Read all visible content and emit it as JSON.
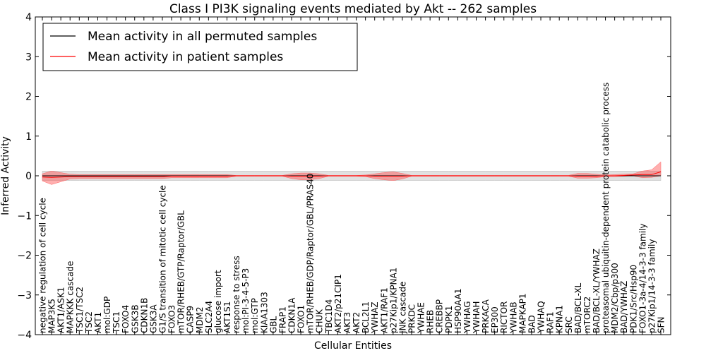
{
  "chart_data": {
    "type": "line",
    "title": "Class I PI3K signaling events mediated by Akt -- 262 samples",
    "xlabel": "Cellular Entities",
    "ylabel": "Inferred Activity",
    "ylim": [
      -4,
      4
    ],
    "yticks": [
      -4,
      -3,
      -2,
      -1,
      0,
      1,
      2,
      3,
      4
    ],
    "ytick_labels": [
      "−4",
      "−3",
      "−2",
      "−1",
      "0",
      "1",
      "2",
      "3",
      "4"
    ],
    "legend_position": "top-left",
    "categories": [
      "negative regulation of cell cycle",
      "MAP3K5",
      "AKT1/ASK1",
      "MAPKKK cascade",
      "TSC1/TSC2",
      "TSC2",
      "AKT1",
      "mol:GDP",
      "TSC1",
      "FOXO4",
      "GSK3B",
      "CDKN1B",
      "GSK3A",
      "G1/S transition of mitotic cell cycle",
      "FOXO3",
      "mTOR/RHEB/GTP/Raptor/GBL",
      "CASP9",
      "MDM2",
      "SLC2A4",
      "glucose import",
      "AKT1S1",
      "response to stress",
      "mol:PI-3-4-5-P3",
      "mol:GTP",
      "KIAA1303",
      "GBL",
      "FRAP1",
      "CDKN1A",
      "FOXO1",
      "mTOR/RHEB/GDP/Raptor/GBL/PRAS40",
      "CHUK",
      "TBC1D4",
      "AKT2/p21CIP1",
      "AKT3",
      "AKT2",
      "BCL2L1",
      "YWHAZ",
      "AKT1/RAF1",
      "p27Kip1/KPNA1",
      "JNK cascade",
      "PRKDC",
      "YWHAE",
      "RHEB",
      "CREBBP",
      "PDPK1",
      "HSP90AA1",
      "YWHAG",
      "YWHAH",
      "PRKACA",
      "EP300",
      "RICTOR",
      "YWHAB",
      "MAPKAP1",
      "BAD",
      "YWHAQ",
      "RAF1",
      "KPNA1",
      "SRC",
      "BAD/BCL-XL",
      "mTORC2",
      "BAD/BCL-XL/YWHAZ",
      "proteasomal ubiquitin-dependent protein catabolic process",
      "MDM2/Cbp/p300",
      "BAD/YWHAZ",
      "PDK1/Src/Hsp90",
      "FOXO1-3a-4/14-3-3 family",
      "p27Kip1/14-3-3 family",
      "SFN"
    ],
    "series": [
      {
        "name": "Mean activity in all permuted samples",
        "color": "#000000",
        "values": [
          0,
          0,
          0,
          0,
          0,
          0,
          0,
          0,
          0,
          0,
          0,
          0,
          0,
          0,
          0,
          0,
          0,
          0,
          0,
          0,
          0,
          0,
          0,
          0,
          0,
          0,
          0,
          0,
          0,
          0,
          0,
          0,
          0,
          0,
          0,
          0,
          0,
          0,
          0,
          0,
          0,
          0,
          0,
          0,
          0,
          0,
          0,
          0,
          0,
          0,
          0,
          0,
          0,
          0,
          0,
          0,
          0,
          0,
          0,
          0,
          0,
          0,
          0,
          0,
          0,
          0,
          0,
          0
        ],
        "band_upper": [
          0.12,
          0.12,
          0.12,
          0.12,
          0.12,
          0.12,
          0.12,
          0.12,
          0.12,
          0.12,
          0.12,
          0.12,
          0.12,
          0.12,
          0.12,
          0.12,
          0.12,
          0.12,
          0.12,
          0.12,
          0.12,
          0.12,
          0.12,
          0.12,
          0.12,
          0.12,
          0.12,
          0.12,
          0.12,
          0.12,
          0.12,
          0.12,
          0.12,
          0.12,
          0.12,
          0.12,
          0.12,
          0.12,
          0.12,
          0.12,
          0.12,
          0.12,
          0.12,
          0.12,
          0.12,
          0.12,
          0.12,
          0.12,
          0.12,
          0.12,
          0.12,
          0.12,
          0.12,
          0.12,
          0.12,
          0.12,
          0.12,
          0.12,
          0.12,
          0.12,
          0.12,
          0.12,
          0.12,
          0.12,
          0.12,
          0.12,
          0.12,
          0.12
        ],
        "band_lower": [
          -0.12,
          -0.12,
          -0.12,
          -0.12,
          -0.12,
          -0.12,
          -0.12,
          -0.12,
          -0.12,
          -0.12,
          -0.12,
          -0.12,
          -0.12,
          -0.12,
          -0.12,
          -0.12,
          -0.12,
          -0.12,
          -0.12,
          -0.12,
          -0.12,
          -0.12,
          -0.12,
          -0.12,
          -0.12,
          -0.12,
          -0.12,
          -0.12,
          -0.12,
          -0.12,
          -0.12,
          -0.12,
          -0.12,
          -0.12,
          -0.12,
          -0.12,
          -0.12,
          -0.12,
          -0.12,
          -0.12,
          -0.12,
          -0.12,
          -0.12,
          -0.12,
          -0.12,
          -0.12,
          -0.12,
          -0.12,
          -0.12,
          -0.12,
          -0.12,
          -0.12,
          -0.12,
          -0.12,
          -0.12,
          -0.12,
          -0.12,
          -0.12,
          -0.12,
          -0.12,
          -0.12,
          -0.12,
          -0.12,
          -0.12,
          -0.12,
          -0.12,
          -0.12,
          -0.12
        ]
      },
      {
        "name": "Mean activity in patient samples",
        "color": "#ff0000",
        "values": [
          -0.03,
          -0.04,
          -0.03,
          -0.02,
          -0.02,
          -0.02,
          -0.02,
          -0.02,
          -0.02,
          -0.02,
          -0.02,
          -0.02,
          -0.02,
          -0.02,
          -0.01,
          -0.01,
          -0.01,
          -0.01,
          -0.01,
          -0.01,
          -0.01,
          0,
          0,
          0,
          0,
          0,
          0,
          -0.01,
          -0.01,
          -0.01,
          -0.01,
          0,
          0,
          0,
          0,
          0,
          -0.01,
          -0.01,
          -0.01,
          -0.01,
          0,
          0,
          0,
          0,
          0,
          0,
          0,
          0,
          0,
          0,
          0,
          0,
          0,
          0,
          0,
          0,
          0,
          0,
          -0.01,
          -0.01,
          -0.01,
          0,
          0,
          0.01,
          0.02,
          0.03,
          0.03,
          0.1
        ],
        "band_upper": [
          0.05,
          0.12,
          0.08,
          0.04,
          0.03,
          0.03,
          0.03,
          0.03,
          0.03,
          0.03,
          0.03,
          0.03,
          0.03,
          0.03,
          0.03,
          0.03,
          0.03,
          0.03,
          0.03,
          0.03,
          0.03,
          0.01,
          0.01,
          0.01,
          0.01,
          0.01,
          0.01,
          0.05,
          0.07,
          0.07,
          0.05,
          0.01,
          0.01,
          0.01,
          0.01,
          0.02,
          0.05,
          0.08,
          0.1,
          0.06,
          0.01,
          0.01,
          0.01,
          0.01,
          0.01,
          0.01,
          0.01,
          0.01,
          0.01,
          0.01,
          0.01,
          0.01,
          0.01,
          0.01,
          0.01,
          0.01,
          0.01,
          0.01,
          0.06,
          0.06,
          0.04,
          0.02,
          0.03,
          0.04,
          0.05,
          0.12,
          0.15,
          0.35
        ],
        "band_lower": [
          -0.13,
          -0.22,
          -0.15,
          -0.08,
          -0.07,
          -0.07,
          -0.07,
          -0.07,
          -0.07,
          -0.07,
          -0.07,
          -0.07,
          -0.07,
          -0.07,
          -0.05,
          -0.05,
          -0.05,
          -0.05,
          -0.05,
          -0.05,
          -0.05,
          -0.01,
          -0.01,
          -0.01,
          -0.01,
          -0.01,
          -0.01,
          -0.07,
          -0.1,
          -0.1,
          -0.07,
          -0.01,
          -0.01,
          -0.01,
          -0.01,
          -0.02,
          -0.07,
          -0.1,
          -0.12,
          -0.08,
          -0.01,
          -0.01,
          -0.01,
          -0.01,
          -0.01,
          -0.01,
          -0.01,
          -0.01,
          -0.01,
          -0.01,
          -0.01,
          -0.01,
          -0.01,
          -0.01,
          -0.01,
          -0.01,
          -0.01,
          -0.01,
          -0.06,
          -0.06,
          -0.05,
          -0.02,
          -0.02,
          -0.01,
          0,
          -0.05,
          -0.04,
          0
        ]
      }
    ]
  }
}
